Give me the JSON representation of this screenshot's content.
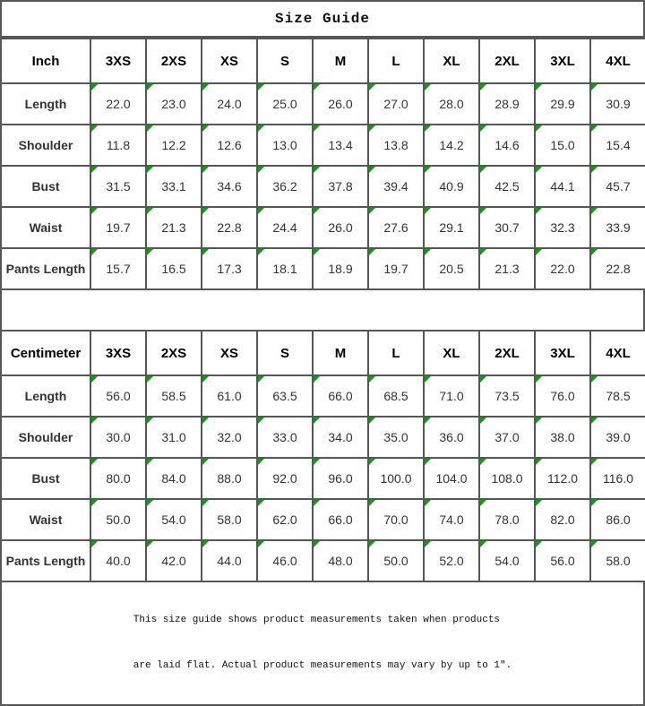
{
  "title": "Size Guide",
  "colors": {
    "grid_line": "#565656",
    "error_indicator_green": "#0aa00a",
    "background": "#ffffff",
    "text": "#000000"
  },
  "footer": {
    "line1": "This size guide shows product measurements taken when products",
    "line2": "are laid flat. Actual product measurements may vary by up to 1″."
  },
  "tables": [
    {
      "unit_label": "Inch",
      "sizes": [
        "3XS",
        "2XS",
        "XS",
        "S",
        "M",
        "L",
        "XL",
        "2XL",
        "3XL",
        "4XL"
      ],
      "rows": [
        {
          "label": "Length",
          "values": [
            "22.0",
            "23.0",
            "24.0",
            "25.0",
            "26.0",
            "27.0",
            "28.0",
            "28.9",
            "29.9",
            "30.9"
          ]
        },
        {
          "label": "Shoulder",
          "values": [
            "11.8",
            "12.2",
            "12.6",
            "13.0",
            "13.4",
            "13.8",
            "14.2",
            "14.6",
            "15.0",
            "15.4"
          ]
        },
        {
          "label": "Bust",
          "values": [
            "31.5",
            "33.1",
            "34.6",
            "36.2",
            "37.8",
            "39.4",
            "40.9",
            "42.5",
            "44.1",
            "45.7"
          ]
        },
        {
          "label": "Waist",
          "values": [
            "19.7",
            "21.3",
            "22.8",
            "24.4",
            "26.0",
            "27.6",
            "29.1",
            "30.7",
            "32.3",
            "33.9"
          ]
        },
        {
          "label": "Pants Length",
          "values": [
            "15.7",
            "16.5",
            "17.3",
            "18.1",
            "18.9",
            "19.7",
            "20.5",
            "21.3",
            "22.0",
            "22.8"
          ]
        }
      ]
    },
    {
      "unit_label": "Centimeter",
      "sizes": [
        "3XS",
        "2XS",
        "XS",
        "S",
        "M",
        "L",
        "XL",
        "2XL",
        "3XL",
        "4XL"
      ],
      "rows": [
        {
          "label": "Length",
          "values": [
            "56.0",
            "58.5",
            "61.0",
            "63.5",
            "66.0",
            "68.5",
            "71.0",
            "73.5",
            "76.0",
            "78.5"
          ]
        },
        {
          "label": "Shoulder",
          "values": [
            "30.0",
            "31.0",
            "32.0",
            "33.0",
            "34.0",
            "35.0",
            "36.0",
            "37.0",
            "38.0",
            "39.0"
          ]
        },
        {
          "label": "Bust",
          "values": [
            "80.0",
            "84.0",
            "88.0",
            "92.0",
            "96.0",
            "100.0",
            "104.0",
            "108.0",
            "112.0",
            "116.0"
          ]
        },
        {
          "label": "Waist",
          "values": [
            "50.0",
            "54.0",
            "58.0",
            "62.0",
            "66.0",
            "70.0",
            "74.0",
            "78.0",
            "82.0",
            "86.0"
          ]
        },
        {
          "label": "Pants Length",
          "values": [
            "40.0",
            "42.0",
            "44.0",
            "46.0",
            "48.0",
            "50.0",
            "52.0",
            "54.0",
            "56.0",
            "58.0"
          ]
        }
      ]
    }
  ]
}
